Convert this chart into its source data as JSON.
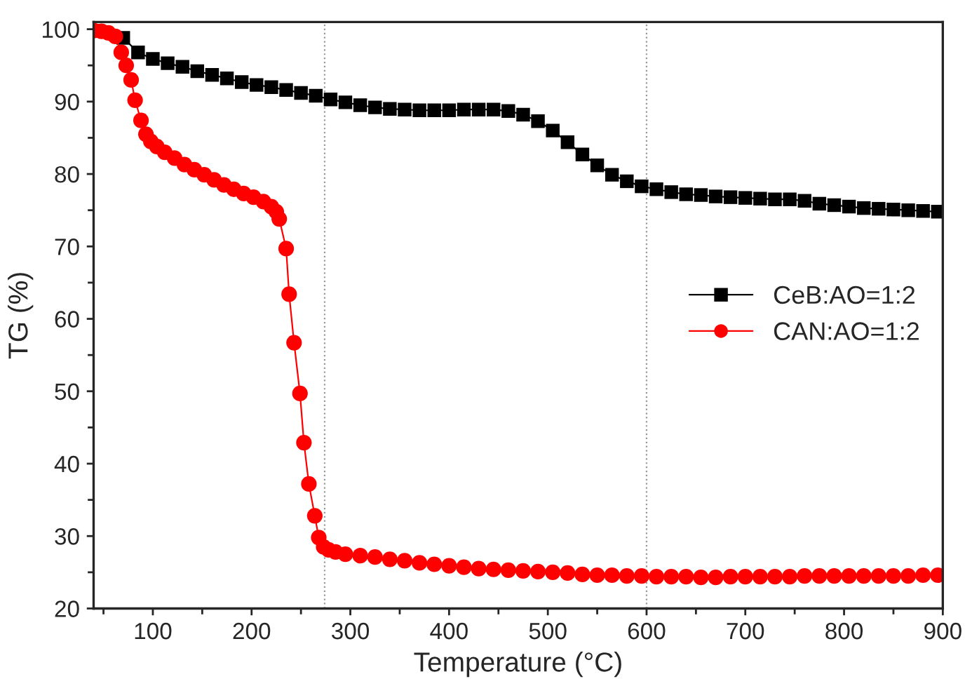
{
  "chart_data": {
    "type": "line",
    "xlabel": "Temperature (°C)",
    "ylabel": "TG (%)",
    "xlim": [
      40,
      900
    ],
    "ylim": [
      20,
      101
    ],
    "xticks": [
      100,
      200,
      300,
      400,
      500,
      600,
      700,
      800,
      900
    ],
    "yticks": [
      20,
      30,
      40,
      50,
      60,
      70,
      80,
      90,
      100
    ],
    "grid": false,
    "legend": "right",
    "ref_lines": [
      {
        "axis": "x",
        "value": 274,
        "color": "#999999",
        "line_style": "dotted"
      },
      {
        "axis": "x",
        "value": 600,
        "color": "#999999",
        "line_style": "dotted"
      }
    ],
    "series": [
      {
        "name": "CeB:AO=1:2",
        "color": "#000000",
        "marker": "square",
        "x": [
          40,
          55,
          70,
          85,
          100,
          115,
          130,
          145,
          160,
          175,
          190,
          205,
          220,
          235,
          250,
          265,
          280,
          295,
          310,
          325,
          340,
          355,
          370,
          385,
          400,
          415,
          430,
          445,
          460,
          475,
          490,
          505,
          520,
          535,
          550,
          565,
          580,
          595,
          610,
          625,
          640,
          655,
          670,
          685,
          700,
          715,
          730,
          745,
          760,
          775,
          790,
          805,
          820,
          835,
          850,
          865,
          880,
          895
        ],
        "values": [
          99.8,
          null,
          98.8,
          96.8,
          95.9,
          95.3,
          94.8,
          94.2,
          93.7,
          93.2,
          92.7,
          92.3,
          92.0,
          91.6,
          91.2,
          90.8,
          90.3,
          89.9,
          89.5,
          89.2,
          89.0,
          88.9,
          88.8,
          88.8,
          88.8,
          88.9,
          88.9,
          88.9,
          88.7,
          88.2,
          87.3,
          86.0,
          84.4,
          82.7,
          81.2,
          79.9,
          79.0,
          78.3,
          77.9,
          77.5,
          77.2,
          77.1,
          76.9,
          76.8,
          76.7,
          76.6,
          76.5,
          76.5,
          76.3,
          75.9,
          75.7,
          75.5,
          75.3,
          75.2,
          75.1,
          75.0,
          74.9,
          74.8
        ]
      },
      {
        "name": "CAN:AO=1:2",
        "color": "#ff0000",
        "marker": "circle",
        "x": [
          40,
          48,
          55,
          62,
          68,
          73,
          78,
          82,
          88,
          93,
          98,
          104,
          112,
          122,
          132,
          142,
          152,
          162,
          172,
          182,
          192,
          202,
          212,
          220,
          225,
          228,
          235,
          238,
          243,
          249,
          253,
          258,
          264,
          268,
          273,
          278,
          285,
          295,
          310,
          325,
          340,
          355,
          370,
          385,
          400,
          415,
          430,
          445,
          460,
          475,
          490,
          505,
          520,
          535,
          550,
          565,
          580,
          595,
          610,
          625,
          640,
          655,
          670,
          685,
          700,
          715,
          730,
          745,
          760,
          775,
          790,
          805,
          820,
          835,
          850,
          865,
          880,
          895
        ],
        "values": [
          99.8,
          99.7,
          99.5,
          99.0,
          96.8,
          95.0,
          93.0,
          90.2,
          87.4,
          85.5,
          84.5,
          83.8,
          83.0,
          82.2,
          81.3,
          80.6,
          79.9,
          79.2,
          78.5,
          77.9,
          77.3,
          76.8,
          76.2,
          75.5,
          74.8,
          73.8,
          69.7,
          63.4,
          56.7,
          49.7,
          42.9,
          37.2,
          32.8,
          29.8,
          28.5,
          28.1,
          27.8,
          27.5,
          27.3,
          27.1,
          26.8,
          26.6,
          26.3,
          26.1,
          25.9,
          25.7,
          25.5,
          25.4,
          25.3,
          25.2,
          25.1,
          25.0,
          24.9,
          24.7,
          24.6,
          24.6,
          24.5,
          24.5,
          24.4,
          24.4,
          24.4,
          24.3,
          24.3,
          24.4,
          24.4,
          24.4,
          24.4,
          24.4,
          24.5,
          24.5,
          24.5,
          24.5,
          24.5,
          24.5,
          24.5,
          24.5,
          24.6,
          24.6
        ]
      }
    ]
  }
}
